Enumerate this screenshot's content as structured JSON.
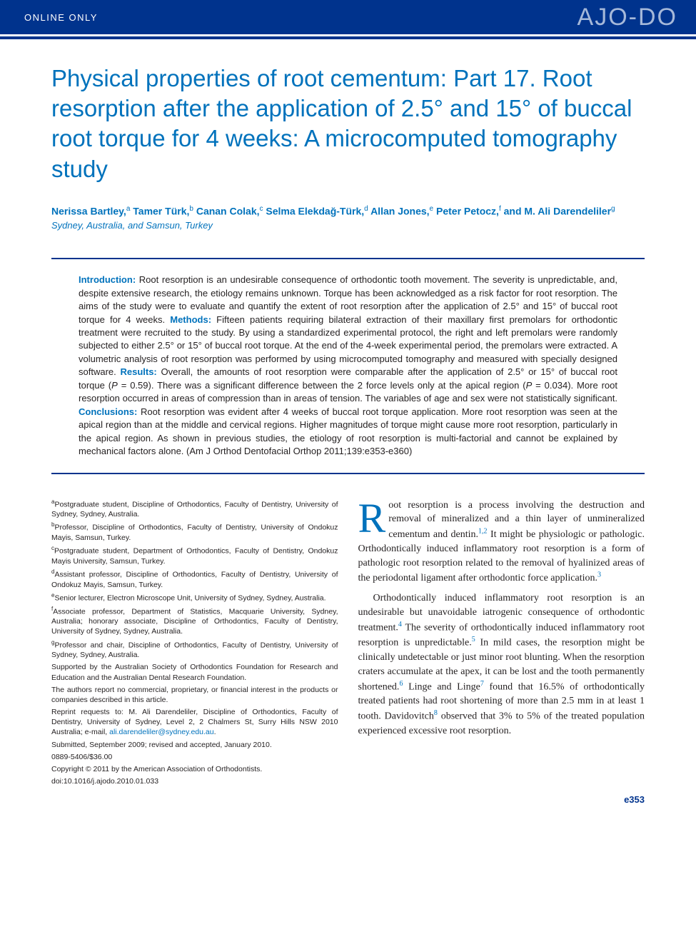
{
  "header": {
    "online_only": "ONLINE ONLY",
    "logo": "AJO-DO"
  },
  "title": "Physical properties of root cementum: Part 17. Root resorption after the application of 2.5° and 15° of buccal root torque for 4 weeks: A microcomputed tomography study",
  "authors_html": "Nerissa Bartley,<sup>a</sup> Tamer Türk,<sup>b</sup> Canan Colak,<sup>c</sup> Selma Elekdağ-Türk,<sup>d</sup> Allan Jones,<sup>e</sup> Peter Petocz,<sup>f</sup> and M. Ali Darendeliler<sup>g</sup>",
  "affil_brief": "Sydney, Australia, and Samsun, Turkey",
  "abstract": {
    "intro_label": "Introduction:",
    "intro": " Root resorption is an undesirable consequence of orthodontic tooth movement. The severity is unpredictable, and, despite extensive research, the etiology remains unknown. Torque has been acknowledged as a risk factor for root resorption. The aims of the study were to evaluate and quantify the extent of root resorption after the application of 2.5° and 15° of buccal root torque for 4 weeks. ",
    "methods_label": "Methods:",
    "methods": " Fifteen patients requiring bilateral extraction of their maxillary first premolars for orthodontic treatment were recruited to the study. By using a standardized experimental protocol, the right and left premolars were randomly subjected to either 2.5° or 15° of buccal root torque. At the end of the 4-week experimental period, the premolars were extracted. A volumetric analysis of root resorption was performed by using microcomputed tomography and measured with specially designed software. ",
    "results_label": "Results:",
    "results": " Overall, the amounts of root resorption were comparable after the application of 2.5° or 15° of buccal root torque (<em>P</em> = 0.59). There was a significant difference between the 2 force levels only at the apical region (<em>P</em> = 0.034). More root resorption occurred in areas of compression than in areas of tension. The variables of age and sex were not statistically significant. ",
    "conclusions_label": "Conclusions:",
    "conclusions": " Root resorption was evident after 4 weeks of buccal root torque application. More root resorption was seen at the apical region than at the middle and cervical regions. Higher magnitudes of torque might cause more root resorption, particularly in the apical region. As shown in previous studies, the etiology of root resorption is multi-factorial and cannot be explained by mechanical factors alone. (Am J Orthod Dentofacial Orthop 2011;139:e353-e360)"
  },
  "footnotes": {
    "a": "Postgraduate student, Discipline of Orthodontics, Faculty of Dentistry, University of Sydney, Sydney, Australia.",
    "b": "Professor, Discipline of Orthodontics, Faculty of Dentistry, University of Ondokuz Mayis, Samsun, Turkey.",
    "c": "Postgraduate student, Department of Orthodontics, Faculty of Dentistry, Ondokuz Mayis University, Samsun, Turkey.",
    "d": "Assistant professor, Discipline of Orthodontics, Faculty of Dentistry, University of Ondokuz Mayis, Samsun, Turkey.",
    "e": "Senior lecturer, Electron Microscope Unit, University of Sydney, Sydney, Australia.",
    "f": "Associate professor, Department of Statistics, Macquarie University, Sydney, Australia; honorary associate, Discipline of Orthodontics, Faculty of Dentistry, University of Sydney, Sydney, Australia.",
    "g": "Professor and chair, Discipline of Orthodontics, Faculty of Dentistry, University of Sydney, Sydney, Australia.",
    "support": "Supported by the Australian Society of Orthodontics Foundation for Research and Education and the Australian Dental Research Foundation.",
    "coi": "The authors report no commercial, proprietary, or financial interest in the products or companies described in this article.",
    "reprint": "Reprint requests to: M. Ali Darendeliler, Discipline of Orthodontics, Faculty of Dentistry, University of Sydney, Level 2, 2 Chalmers St, Surry Hills NSW 2010 Australia; e-mail, ",
    "email": "ali.darendeliler@sydney.edu.au",
    "submitted": "Submitted, September 2009; revised and accepted, January 2010.",
    "issn": "0889-5406/$36.00",
    "copyright": "Copyright © 2011 by the American Association of Orthodontists.",
    "doi": "doi:10.1016/j.ajodo.2010.01.033"
  },
  "body": {
    "p1_dropcap": "R",
    "p1": "oot resorption is a process involving the destruction and removal of mineralized and a thin layer of unmineralized cementum and dentin.<sup>1,2</sup> It might be physiologic or pathologic. Orthodontically induced inflammatory root resorption is a form of pathologic root resorption related to the removal of hyalinized areas of the periodontal ligament after orthodontic force application.<sup>3</sup>",
    "p2": "Orthodontically induced inflammatory root resorption is an undesirable but unavoidable iatrogenic consequence of orthodontic treatment.<sup>4</sup> The severity of orthodontically induced inflammatory root resorption is unpredictable.<sup>5</sup> In mild cases, the resorption might be clinically undetectable or just minor root blunting. When the resorption craters accumulate at the apex, it can be lost and the tooth permanently shortened.<sup>6</sup> Linge and Linge<sup>7</sup> found that 16.5% of orthodontically treated patients had root shortening of more than 2.5 mm in at least 1 tooth. Davidovitch<sup>8</sup> observed that 3% to 5% of the treated population experienced excessive root resorption."
  },
  "page_num": "e353",
  "colors": {
    "brand_blue": "#00338d",
    "link_blue": "#0072bc",
    "logo_tint": "#a5b8d9",
    "text": "#231f20",
    "bg": "#ffffff"
  }
}
